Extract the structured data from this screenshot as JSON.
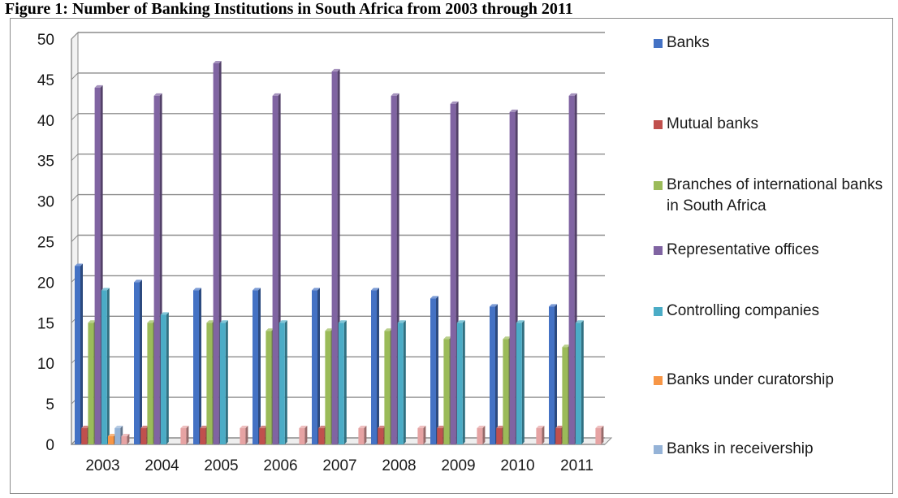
{
  "figure": {
    "heading": "Figure 1: Number of Banking Institutions in South Africa from 2003 through 2011"
  },
  "chart_data": {
    "type": "bar",
    "title": "",
    "xlabel": "",
    "ylabel": "",
    "ylim": [
      0,
      50
    ],
    "yticks": [
      "0",
      "5",
      "10",
      "15",
      "20",
      "25",
      "30",
      "35",
      "40",
      "45",
      "50"
    ],
    "grid": true,
    "legend_position": "right",
    "categories": [
      "2003",
      "2004",
      "2005",
      "2006",
      "2007",
      "2008",
      "2009",
      "2010",
      "2011"
    ],
    "series": [
      {
        "name": "Banks",
        "color": "#4472c4",
        "values": [
          22,
          20,
          19,
          19,
          19,
          19,
          18,
          17,
          17
        ]
      },
      {
        "name": "Mutual  banks",
        "color": "#c0504d",
        "values": [
          2,
          2,
          2,
          2,
          2,
          2,
          2,
          2,
          2
        ]
      },
      {
        "name": "Branches of international banks in South Africa",
        "color": "#9bbb59",
        "values": [
          15,
          15,
          15,
          14,
          14,
          14,
          13,
          13,
          12
        ]
      },
      {
        "name": "Representative offices",
        "color": "#8064a2",
        "values": [
          44,
          43,
          47,
          43,
          46,
          43,
          42,
          41,
          43
        ]
      },
      {
        "name": "Controlling companies",
        "color": "#4bacc6",
        "values": [
          19,
          16,
          15,
          15,
          15,
          15,
          15,
          15,
          15
        ]
      },
      {
        "name": "Banks under curatorship",
        "color": "#f79646",
        "values": [
          1,
          0,
          0,
          0,
          0,
          0,
          0,
          0,
          0
        ]
      },
      {
        "name": "Banks in receivership",
        "color": "#95b3d7",
        "values": [
          2,
          0,
          0,
          0,
          0,
          0,
          0,
          0,
          0
        ]
      },
      {
        "name": "",
        "color": "#e6a3a3",
        "values": [
          1,
          2,
          2,
          2,
          2,
          2,
          2,
          2,
          2
        ]
      }
    ]
  }
}
